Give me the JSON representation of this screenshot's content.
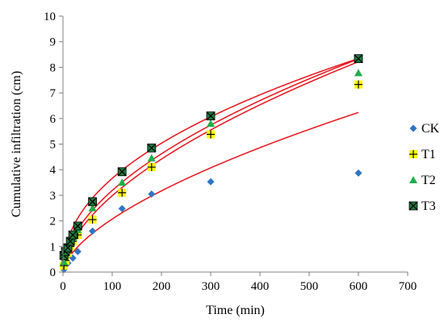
{
  "chart_data": {
    "type": "scatter",
    "title": "",
    "xlabel": "Time (min)",
    "ylabel": "Cumulative infiltration (cm)",
    "xlim": [
      0,
      700
    ],
    "ylim": [
      0,
      10
    ],
    "xticks": [
      0,
      100,
      200,
      300,
      400,
      500,
      600,
      700
    ],
    "yticks": [
      0,
      1,
      2,
      3,
      4,
      5,
      6,
      7,
      8,
      9,
      10
    ],
    "xtick_labels": [
      "0",
      "100",
      "200",
      "300",
      "400",
      "500",
      "600",
      "700"
    ],
    "ytick_labels": [
      "0",
      "1",
      "2",
      "3",
      "4",
      "5",
      "6",
      "7",
      "8",
      "9",
      "10"
    ],
    "grid": false,
    "legend_position": "right",
    "fit_line_color": "#e8141b",
    "series": [
      {
        "name": "CK",
        "marker": "diamond",
        "color": "#2e75c3",
        "points": [
          [
            2,
            0.1
          ],
          [
            5,
            0.25
          ],
          [
            10,
            0.35
          ],
          [
            20,
            0.55
          ],
          [
            30,
            0.8
          ],
          [
            60,
            1.6
          ],
          [
            120,
            2.48
          ],
          [
            180,
            3.05
          ],
          [
            300,
            3.53
          ],
          [
            600,
            3.87
          ]
        ],
        "fit": {
          "a": 0.122,
          "b": 0.615
        }
      },
      {
        "name": "T1",
        "marker": "plus-square",
        "color": "#ffff00",
        "stroke": "#000000",
        "points": [
          [
            2,
            0.25
          ],
          [
            5,
            0.45
          ],
          [
            10,
            0.75
          ],
          [
            15,
            1.0
          ],
          [
            20,
            1.2
          ],
          [
            30,
            1.45
          ],
          [
            60,
            2.05
          ],
          [
            120,
            3.1
          ],
          [
            180,
            4.1
          ],
          [
            300,
            5.38
          ],
          [
            600,
            7.33
          ]
        ],
        "fit": {
          "a": 0.22,
          "b": 0.566
        }
      },
      {
        "name": "T2",
        "marker": "triangle",
        "color": "#1fb04a",
        "points": [
          [
            2,
            0.4
          ],
          [
            5,
            0.7
          ],
          [
            10,
            0.95
          ],
          [
            15,
            1.2
          ],
          [
            20,
            1.35
          ],
          [
            30,
            1.65
          ],
          [
            60,
            2.5
          ],
          [
            120,
            3.5
          ],
          [
            180,
            4.45
          ],
          [
            300,
            5.8
          ],
          [
            600,
            7.78
          ]
        ],
        "fit": {
          "a": 0.27,
          "b": 0.536
        }
      },
      {
        "name": "T3",
        "marker": "x-square",
        "color": "#1f7a3f",
        "points": [
          [
            2,
            0.65
          ],
          [
            5,
            0.8
          ],
          [
            10,
            0.95
          ],
          [
            15,
            1.2
          ],
          [
            20,
            1.45
          ],
          [
            30,
            1.8
          ],
          [
            60,
            2.75
          ],
          [
            120,
            3.92
          ],
          [
            180,
            4.85
          ],
          [
            300,
            6.1
          ],
          [
            600,
            8.34
          ]
        ],
        "fit": {
          "a": 0.44,
          "b": 0.46
        }
      }
    ]
  }
}
